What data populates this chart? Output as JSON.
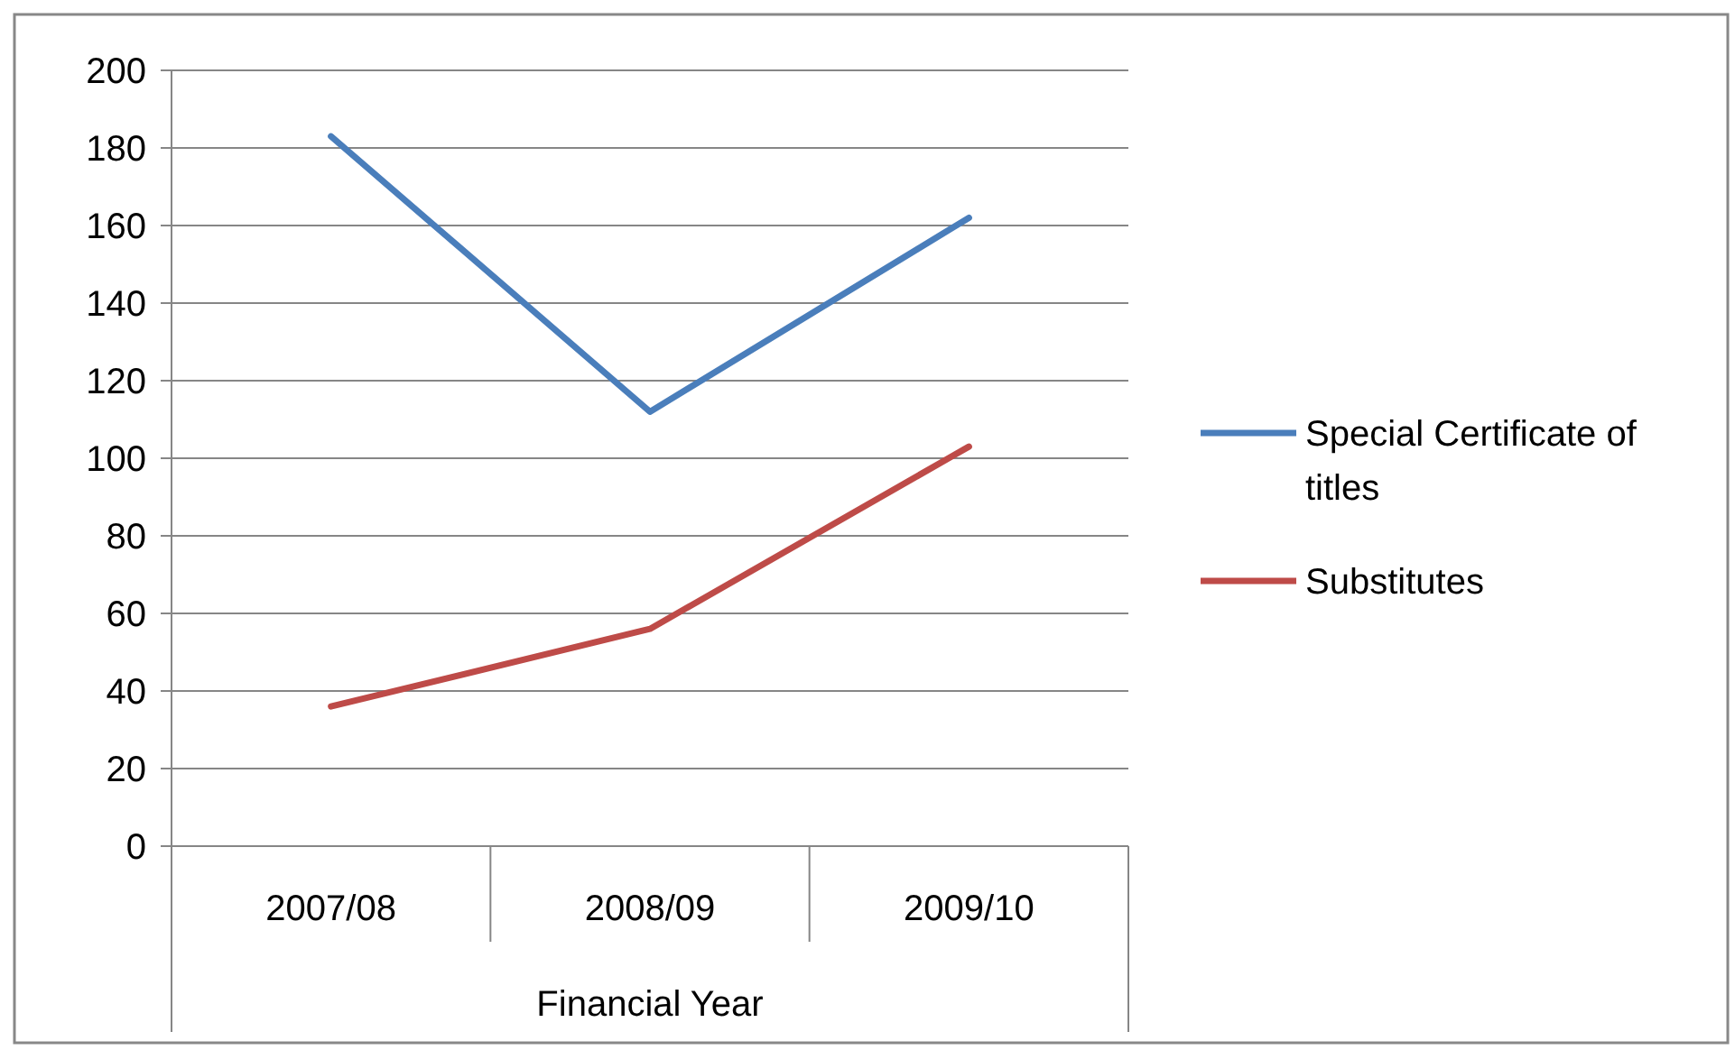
{
  "chart_data": {
    "type": "line",
    "xlabel": "Financial Year",
    "categories": [
      "2007/08",
      "2008/09",
      "2009/10"
    ],
    "series": [
      {
        "name": "Special Certificate of titles",
        "color": "#4a7ebb",
        "values": [
          183,
          112,
          162
        ]
      },
      {
        "name": "Substitutes",
        "color": "#be4b48",
        "values": [
          36,
          56,
          103
        ]
      }
    ],
    "ylim": [
      0,
      200
    ],
    "yticks": [
      0,
      20,
      40,
      60,
      80,
      100,
      120,
      140,
      160,
      180,
      200
    ],
    "grid": "y",
    "legend": "right",
    "marker": "none",
    "line_style": "solid"
  }
}
